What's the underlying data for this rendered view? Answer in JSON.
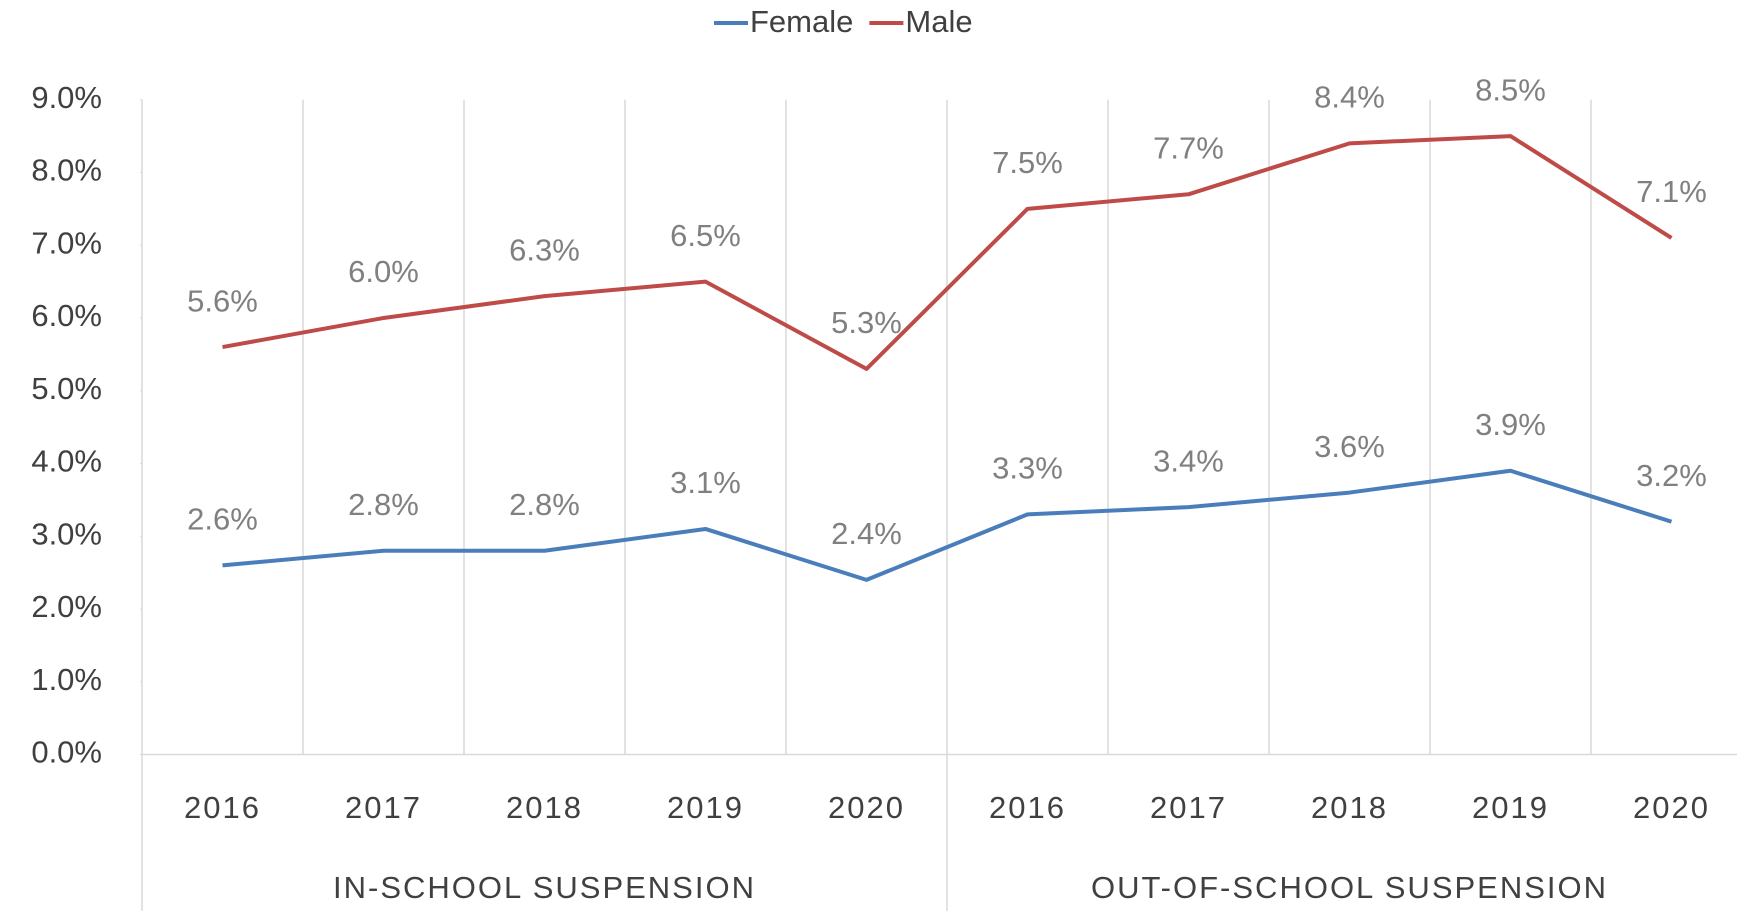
{
  "chart_data": {
    "type": "line",
    "categories": [
      "2016",
      "2017",
      "2018",
      "2019",
      "2020",
      "2016",
      "2017",
      "2018",
      "2019",
      "2020"
    ],
    "groups": [
      {
        "name": "IN-SCHOOL SUSPENSION",
        "span": 5
      },
      {
        "name": "OUT-OF-SCHOOL SUSPENSION",
        "span": 5
      }
    ],
    "series": [
      {
        "name": "Female",
        "color": "#4a7ebb",
        "values": [
          2.6,
          2.8,
          2.8,
          3.1,
          2.4,
          3.3,
          3.4,
          3.6,
          3.9,
          3.2
        ],
        "value_labels": [
          "2.6%",
          "2.8%",
          "2.8%",
          "3.1%",
          "2.4%",
          "3.3%",
          "3.4%",
          "3.6%",
          "3.9%",
          "3.2%"
        ]
      },
      {
        "name": "Male",
        "color": "#be4b48",
        "values": [
          5.6,
          6.0,
          6.3,
          6.5,
          5.3,
          7.5,
          7.7,
          8.4,
          8.5,
          7.1
        ],
        "value_labels": [
          "5.6%",
          "6.0%",
          "6.3%",
          "6.5%",
          "5.3%",
          "7.5%",
          "7.7%",
          "8.4%",
          "8.5%",
          "7.1%"
        ]
      }
    ],
    "ylim": [
      0,
      9
    ],
    "yticks": [
      {
        "value": 0,
        "label": "0.0%"
      },
      {
        "value": 1,
        "label": "1.0%"
      },
      {
        "value": 2,
        "label": "2.0%"
      },
      {
        "value": 3,
        "label": "3.0%"
      },
      {
        "value": 4,
        "label": "4.0%"
      },
      {
        "value": 5,
        "label": "5.0%"
      },
      {
        "value": 6,
        "label": "6.0%"
      },
      {
        "value": 7,
        "label": "7.0%"
      },
      {
        "value": 8,
        "label": "8.0%"
      },
      {
        "value": 9,
        "label": "9.0%"
      }
    ],
    "legend": "top"
  }
}
